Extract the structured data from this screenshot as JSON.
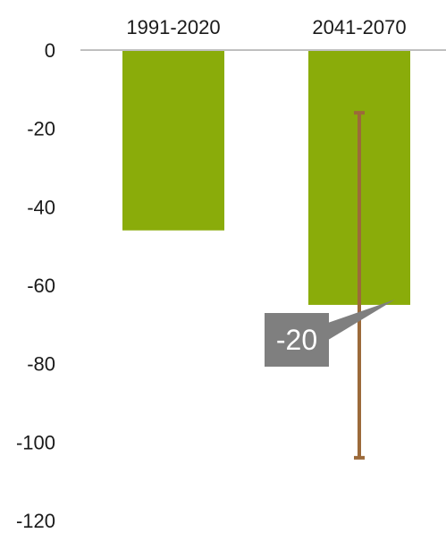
{
  "chart_data": {
    "type": "bar",
    "categories": [
      "1991-2020",
      "2041-2070"
    ],
    "values": [
      -46,
      -65
    ],
    "error_bars": [
      null,
      {
        "low": -104,
        "high": -16
      }
    ],
    "yticks": [
      0,
      -20,
      -40,
      -60,
      -80,
      -100,
      -120
    ],
    "ylim": [
      -120,
      0
    ],
    "callout": {
      "text": "-20",
      "category_index": 1
    },
    "colors": {
      "bar": "#8aac0a",
      "error_bar": "#9c6a3a",
      "callout_bg": "#7f7f7f",
      "axis": "#bfbfbf"
    },
    "grid": false,
    "legend": "none"
  }
}
